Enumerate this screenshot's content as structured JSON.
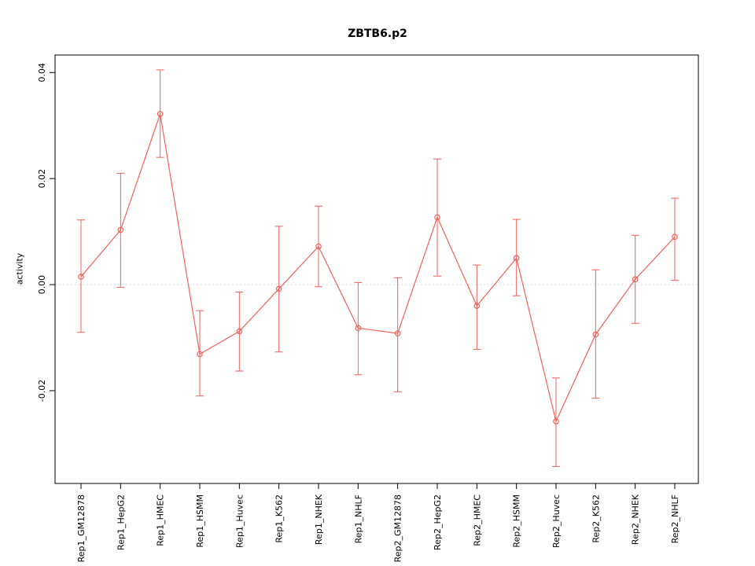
{
  "chart_data": {
    "type": "line",
    "title": "ZBTB6.p2",
    "ylabel": "activity",
    "xlabel": "",
    "legend": "none",
    "grid": false,
    "categories": [
      "Rep1_GM12878",
      "Rep1_HepG2",
      "Rep1_HMEC",
      "Rep1_HSMM",
      "Rep1_Huvec",
      "Rep1_K562",
      "Rep1_NHEK",
      "Rep1_NHLF",
      "Rep2_GM12878",
      "Rep2_HepG2",
      "Rep2_HMEC",
      "Rep2_HSMM",
      "Rep2_Huvec",
      "Rep2_K562",
      "Rep2_NHEK",
      "Rep2_NHLF"
    ],
    "series": [
      {
        "name": "activity",
        "values": [
          0.0015,
          0.0103,
          0.0322,
          -0.0131,
          -0.0088,
          -0.0008,
          0.0072,
          -0.0082,
          -0.0092,
          0.0127,
          -0.004,
          0.005,
          -0.0258,
          -0.0094,
          0.001,
          0.009
        ],
        "upper": [
          0.0122,
          0.021,
          0.0405,
          -0.0049,
          -0.0014,
          0.011,
          0.0148,
          0.0004,
          0.0013,
          0.0237,
          0.0037,
          0.0123,
          -0.0176,
          0.0028,
          0.0093,
          0.0163
        ],
        "lower": [
          -0.009,
          -0.0005,
          0.024,
          -0.021,
          -0.0163,
          -0.0127,
          -0.0004,
          -0.017,
          -0.0202,
          0.0016,
          -0.0122,
          -0.0021,
          -0.0343,
          -0.0214,
          -0.0073,
          0.0008
        ]
      }
    ],
    "ytick_values": [
      -0.02,
      0.0,
      0.02,
      0.04
    ],
    "ytick_labels": [
      "-0.02",
      "0.00",
      "0.02",
      "0.04"
    ],
    "ylim": [
      -0.0375,
      0.0433
    ],
    "zero_reference_line": 0,
    "colors": {
      "series": "#f0625a",
      "zero_line": "#d8d8d8",
      "axis": "#000000",
      "text": "#000000",
      "background": "#ffffff"
    }
  }
}
